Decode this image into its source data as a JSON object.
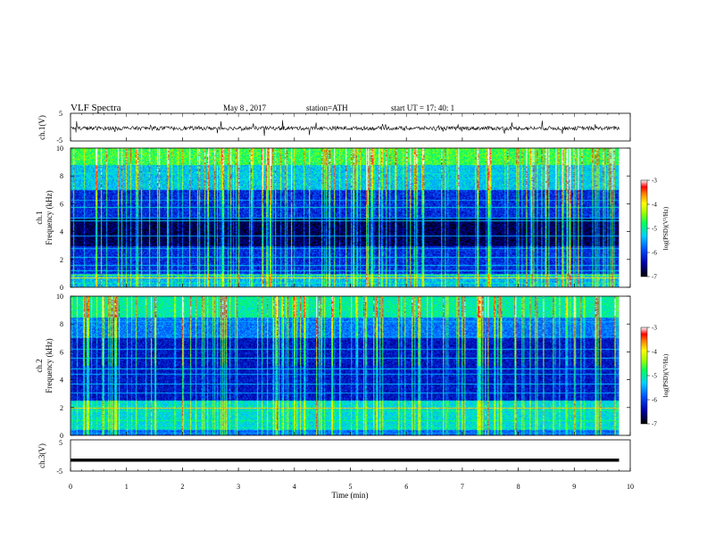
{
  "header": {
    "title": "VLF  Spectra",
    "date": "May 8  , 2017",
    "station": "station=ATH",
    "start_ut": "start  UT  =    17: 40: 1"
  },
  "chart_data": [
    {
      "type": "line",
      "ylabel": "ch.1(V)",
      "ylim": [
        -5,
        5
      ],
      "yticks": [
        "5",
        "-5"
      ],
      "x_range_min": [
        0,
        9.8
      ],
      "description_level": -0.4,
      "color": "#000000"
    },
    {
      "type": "heatmap",
      "ylabel_channel": "ch.1",
      "ylabel": "Frequency  (kHz)",
      "ylim": [
        0,
        10
      ],
      "yticks": [
        "0",
        "2",
        "4",
        "6",
        "8",
        "10"
      ],
      "colorbar": {
        "label": "log(PSD)(V²/Hz)",
        "range": [
          -7,
          -3
        ],
        "ticks": [
          "-3",
          "-4",
          "-5",
          "-6",
          "-7"
        ]
      }
    },
    {
      "type": "heatmap",
      "ylabel_channel": "ch.2",
      "ylabel": "Frequency  (kHz)",
      "ylim": [
        0,
        10
      ],
      "yticks": [
        "0",
        "2",
        "4",
        "6",
        "8",
        "10"
      ],
      "colorbar": {
        "label": "log(PSD)(V²/Hz)",
        "range": [
          -7,
          -3
        ],
        "ticks": [
          "-3",
          "-4",
          "-5",
          "-6",
          "-7"
        ]
      }
    },
    {
      "type": "line",
      "ylabel": "ch.3(V)",
      "ylim": [
        -5,
        5
      ],
      "yticks": [
        "5",
        "-5"
      ],
      "level": -1.5,
      "color": "#000000"
    }
  ],
  "x_axis": {
    "xlabel": "Time  (min)",
    "xlim": [
      0,
      10
    ],
    "xticks": [
      "0",
      "1",
      "2",
      "3",
      "4",
      "5",
      "6",
      "7",
      "8",
      "9",
      "10"
    ],
    "data_end_min": 9.8
  }
}
